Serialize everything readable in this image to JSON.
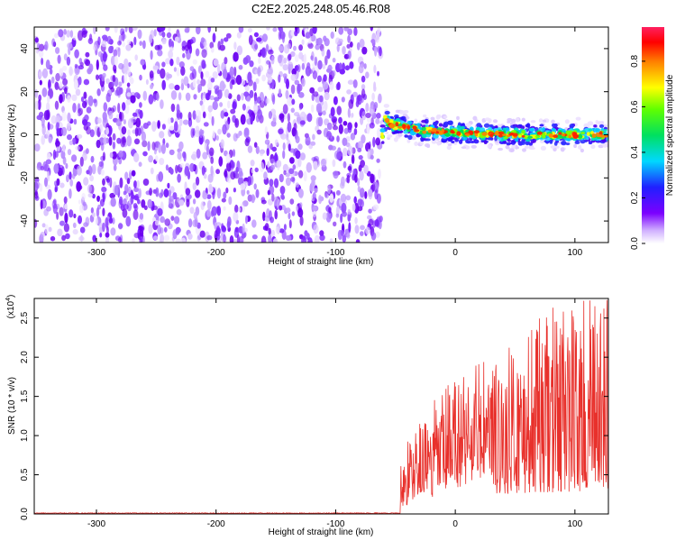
{
  "title": "C2E2.2025.248.05.46.R08",
  "chart_data": [
    {
      "type": "heatmap",
      "xlabel": "Height of straight line (km)",
      "ylabel": "Frequency (Hz)",
      "xlim": [
        -352,
        128
      ],
      "ylim": [
        -50,
        50
      ],
      "xticks": [
        -300,
        -200,
        -100,
        0,
        100
      ],
      "yticks": [
        -40,
        -20,
        0,
        20,
        40
      ],
      "noise_region_x": [
        -352,
        -62
      ],
      "signal_band": {
        "x_start": -62,
        "x_end": 128,
        "center_freq": [
          {
            "x": -60,
            "y": 8
          },
          {
            "x": -55,
            "y": 5
          },
          {
            "x": -45,
            "y": 4
          },
          {
            "x": -30,
            "y": 2
          },
          {
            "x": 0,
            "y": 1
          },
          {
            "x": 50,
            "y": 0
          },
          {
            "x": 100,
            "y": 0
          },
          {
            "x": 128,
            "y": 0
          }
        ]
      },
      "colorbar": {
        "label": "Normalized spectral amplitude",
        "range": [
          0,
          0.95
        ],
        "ticks": [
          "0.0",
          "0.2",
          "0.4",
          "0.6",
          "0.8"
        ],
        "colormap": "rainbow"
      }
    },
    {
      "type": "line",
      "xlabel": "Height of straight line (km)",
      "ylabel": "SNR (10 * v/v)",
      "y_multiplier": "(x10^4)",
      "y_multiplier_base": "(x10",
      "y_multiplier_exp": "4",
      "xlim": [
        -352,
        128
      ],
      "ylim": [
        0,
        2.75
      ],
      "xticks": [
        -300,
        -200,
        -100,
        0,
        100
      ],
      "yticks": [
        "0.0",
        "0.5",
        "1.0",
        "1.5",
        "2.0",
        "2.5"
      ],
      "color": "#e8302b",
      "segments": [
        {
          "x_start": -352,
          "x_end": -46,
          "baseline": 0.01,
          "amplitude": 0.01
        },
        {
          "x_start": -46,
          "x_end": -20,
          "baseline_from": 0.05,
          "baseline_to": 0.35,
          "peak": 1.2
        },
        {
          "x_start": -20,
          "x_end": 30,
          "baseline_from": 0.2,
          "baseline_to": 0.5,
          "peak": 2.0
        },
        {
          "x_start": 30,
          "x_end": 128,
          "baseline_from": 0.25,
          "baseline_to": 0.3,
          "peak": 2.75
        }
      ]
    }
  ]
}
